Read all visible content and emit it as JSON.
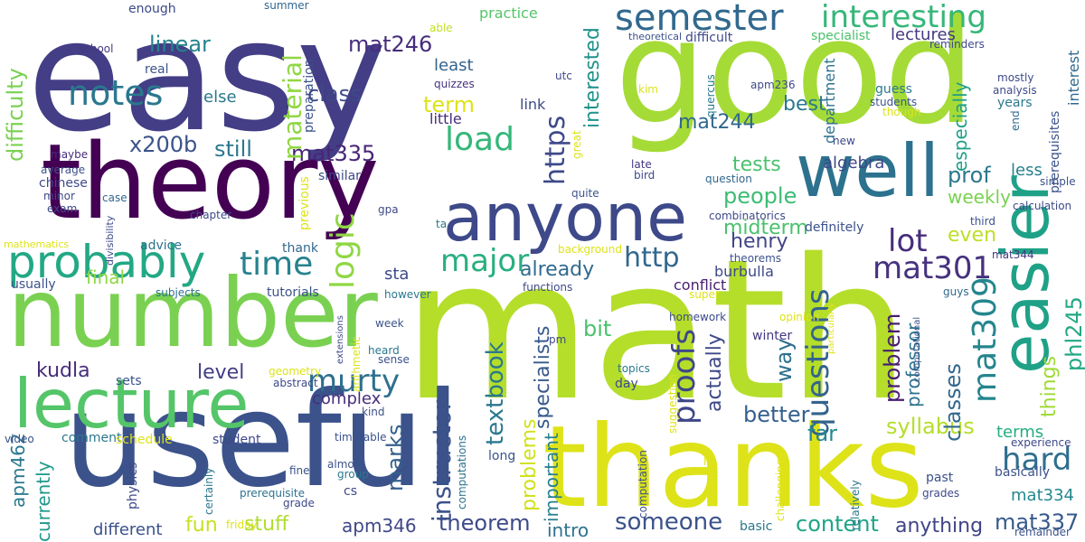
{
  "words": [
    {
      "text": "math",
      "color": "#b5de2b"
    },
    {
      "text": "easy",
      "color": "#433e85"
    },
    {
      "text": "good",
      "color": "#a5db36"
    },
    {
      "text": "useful",
      "color": "#3b528b"
    },
    {
      "text": "thanks",
      "color": "#dde318"
    },
    {
      "text": "theory",
      "color": "#440154"
    },
    {
      "text": "number",
      "color": "#7ad151"
    },
    {
      "text": "lecture",
      "color": "#54c568"
    },
    {
      "text": "anyone",
      "color": "#3e4989"
    },
    {
      "text": "well",
      "color": "#2c728e"
    },
    {
      "text": "easier",
      "color": "#1fa187"
    },
    {
      "text": "probably",
      "color": "#22a884"
    },
    {
      "text": "semester",
      "color": "#31688e"
    },
    {
      "text": "interesting",
      "color": "#35b779"
    },
    {
      "text": "notes",
      "color": "#2a788e"
    },
    {
      "text": "load",
      "color": "#35b779"
    },
    {
      "text": "time",
      "color": "#26828e"
    },
    {
      "text": "mat301",
      "color": "#46327e"
    },
    {
      "text": "murty",
      "color": "#2d708e"
    },
    {
      "text": "logic",
      "color": "#8fd744"
    },
    {
      "text": "major",
      "color": "#29af7f"
    },
    {
      "text": "https",
      "color": "#3e4989"
    },
    {
      "text": "http",
      "color": "#31688e"
    },
    {
      "text": "lot",
      "color": "#472d7b"
    },
    {
      "text": "questions",
      "color": "#33638d"
    },
    {
      "text": "proofs",
      "color": "#3f4788"
    },
    {
      "text": "mat309",
      "color": "#25858e"
    },
    {
      "text": "hard",
      "color": "#2e6e8e"
    },
    {
      "text": "someone",
      "color": "#3b528b"
    },
    {
      "text": "theorem",
      "color": "#3e4a89"
    },
    {
      "text": "marks",
      "color": "#34608d"
    },
    {
      "text": "textbook",
      "color": "#2a788e"
    },
    {
      "text": "instructor",
      "color": "#3b528b"
    },
    {
      "text": "syllabus",
      "color": "#b5de2b"
    },
    {
      "text": "level",
      "color": "#433e85"
    },
    {
      "text": "kudla",
      "color": "#472d7b"
    },
    {
      "text": "fun",
      "color": "#c8e020"
    },
    {
      "text": "stuff",
      "color": "#b0dd2f"
    },
    {
      "text": "content",
      "color": "#20a486"
    },
    {
      "text": "mat337",
      "color": "#375a8c"
    },
    {
      "text": "anything",
      "color": "#414487"
    },
    {
      "text": "phl245",
      "color": "#22a884"
    },
    {
      "text": "things",
      "color": "#a0da39"
    },
    {
      "text": "classes",
      "color": "#31688e"
    },
    {
      "text": "problem",
      "color": "#481f70"
    },
    {
      "text": "professor",
      "color": "#2c728e"
    },
    {
      "text": "midterm",
      "color": "#4ac16d"
    },
    {
      "text": "people",
      "color": "#3dbc74"
    },
    {
      "text": "tests",
      "color": "#4ac16d"
    },
    {
      "text": "x200b",
      "color": "#3b528b"
    },
    {
      "text": "mat335",
      "color": "#482677"
    },
    {
      "text": "still",
      "color": "#2a788e"
    },
    {
      "text": "material",
      "color": "#90d743"
    },
    {
      "text": "class",
      "color": "#3e4989"
    },
    {
      "text": "mat246",
      "color": "#472d7b"
    },
    {
      "text": "linear",
      "color": "#25848e"
    },
    {
      "text": "difficulty",
      "color": "#7ad151"
    },
    {
      "text": "interested",
      "color": "#21918c"
    },
    {
      "text": "term",
      "color": "#dde318"
    },
    {
      "text": "mat244",
      "color": "#31688e"
    },
    {
      "text": "best",
      "color": "#2a788e"
    },
    {
      "text": "algebra",
      "color": "#3f4788"
    },
    {
      "text": "prof",
      "color": "#2a788e"
    },
    {
      "text": "even",
      "color": "#bddf26"
    },
    {
      "text": "weekly",
      "color": "#7ad151"
    },
    {
      "text": "already",
      "color": "#306a8e"
    },
    {
      "text": "final",
      "color": "#90d743"
    },
    {
      "text": "bit",
      "color": "#4ac16d"
    },
    {
      "text": "way",
      "color": "#2d708e"
    },
    {
      "text": "better",
      "color": "#34608d"
    },
    {
      "text": "far",
      "color": "#24878e"
    },
    {
      "text": "actually",
      "color": "#3e4989"
    },
    {
      "text": "henry",
      "color": "#414487"
    },
    {
      "text": "complex",
      "color": "#472d7b"
    },
    {
      "text": "problems",
      "color": "#d0e11c"
    },
    {
      "text": "specialists",
      "color": "#375a8c"
    },
    {
      "text": "important",
      "color": "#277f8e"
    },
    {
      "text": "intro",
      "color": "#2c728e"
    },
    {
      "text": "different",
      "color": "#3b528b"
    },
    {
      "text": "apm346",
      "color": "#3f4788"
    },
    {
      "text": "apm462",
      "color": "#2a788e"
    },
    {
      "text": "currently",
      "color": "#1f998a"
    },
    {
      "text": "mat334",
      "color": "#23888e"
    },
    {
      "text": "terms",
      "color": "#26ad81"
    },
    {
      "text": "lectures",
      "color": "#453781"
    },
    {
      "text": "especially",
      "color": "#1fa088"
    },
    {
      "text": "department",
      "color": "#2c728e"
    },
    {
      "text": "less",
      "color": "#277f8e"
    },
    {
      "text": "definitely",
      "color": "#3b528b"
    },
    {
      "text": "conflict",
      "color": "#481f70"
    },
    {
      "text": "burbulla",
      "color": "#3e4989"
    },
    {
      "text": "link",
      "color": "#3e4989"
    },
    {
      "text": "least",
      "color": "#33638d"
    },
    {
      "text": "little",
      "color": "#472d7b"
    },
    {
      "text": "else",
      "color": "#2a788e"
    },
    {
      "text": "real",
      "color": "#3b528b"
    },
    {
      "text": "school",
      "color": "#453781"
    },
    {
      "text": "enough",
      "color": "#3e4989"
    },
    {
      "text": "summer",
      "color": "#31688e"
    },
    {
      "text": "practice",
      "color": "#54c568"
    },
    {
      "text": "able",
      "color": "#c2df23"
    },
    {
      "text": "theoretical",
      "color": "#3b528b"
    },
    {
      "text": "difficult",
      "color": "#3e4989"
    },
    {
      "text": "specialist",
      "color": "#4ac16d"
    },
    {
      "text": "reminders",
      "color": "#3e4989"
    },
    {
      "text": "interest",
      "color": "#31688e"
    },
    {
      "text": "prerequisites",
      "color": "#3b528b"
    },
    {
      "text": "guess",
      "color": "#2a788e"
    },
    {
      "text": "mostly",
      "color": "#3e4989"
    },
    {
      "text": "analysis",
      "color": "#3e4989"
    },
    {
      "text": "years",
      "color": "#2a788e"
    },
    {
      "text": "end",
      "color": "#31688e"
    },
    {
      "text": "students",
      "color": "#3b528b"
    },
    {
      "text": "though",
      "color": "#dde318"
    },
    {
      "text": "apm236",
      "color": "#3e4989"
    },
    {
      "text": "quercus",
      "color": "#2a788e"
    },
    {
      "text": "kim",
      "color": "#dde318"
    },
    {
      "text": "utc",
      "color": "#3e4989"
    },
    {
      "text": "preparation",
      "color": "#3b528b"
    },
    {
      "text": "quizzes",
      "color": "#46327e"
    },
    {
      "text": "chinese",
      "color": "#3e4989"
    },
    {
      "text": "average",
      "color": "#3b528b"
    },
    {
      "text": "maybe",
      "color": "#472d7b"
    },
    {
      "text": "minor",
      "color": "#3e4989"
    },
    {
      "text": "exam",
      "color": "#3e4989"
    },
    {
      "text": "case",
      "color": "#31688e"
    },
    {
      "text": "chapter",
      "color": "#3e4989"
    },
    {
      "text": "advice",
      "color": "#2c728e"
    },
    {
      "text": "mathematics",
      "color": "#dde318"
    },
    {
      "text": "usually",
      "color": "#3b528b"
    },
    {
      "text": "divisibility",
      "color": "#3e4989"
    },
    {
      "text": "previous",
      "color": "#dde318"
    },
    {
      "text": "similar",
      "color": "#3e4989"
    },
    {
      "text": "gpa",
      "color": "#3e4989"
    },
    {
      "text": "ta",
      "color": "#2a788e"
    },
    {
      "text": "sta",
      "color": "#3e4989"
    },
    {
      "text": "thank",
      "color": "#31688e"
    },
    {
      "text": "tutorials",
      "color": "#3b528b"
    },
    {
      "text": "subjects",
      "color": "#2c728e"
    },
    {
      "text": "however",
      "color": "#2a788e"
    },
    {
      "text": "functions",
      "color": "#3e4989"
    },
    {
      "text": "background",
      "color": "#dde318"
    },
    {
      "text": "quite",
      "color": "#3b528b"
    },
    {
      "text": "great",
      "color": "#dde318"
    },
    {
      "text": "late",
      "color": "#453781"
    },
    {
      "text": "bird",
      "color": "#3e4989"
    },
    {
      "text": "question",
      "color": "#31688e"
    },
    {
      "text": "combinatorics",
      "color": "#3e4989"
    },
    {
      "text": "theorems",
      "color": "#3b528b"
    },
    {
      "text": "super",
      "color": "#dde318"
    },
    {
      "text": "new",
      "color": "#3e4989"
    },
    {
      "text": "third",
      "color": "#3b528b"
    },
    {
      "text": "calculation",
      "color": "#3e4989"
    },
    {
      "text": "simple",
      "color": "#3b528b"
    },
    {
      "text": "mat344",
      "color": "#453781"
    },
    {
      "text": "guys",
      "color": "#31688e"
    },
    {
      "text": "particularly",
      "color": "#dde318"
    },
    {
      "text": "opinion",
      "color": "#dde318"
    },
    {
      "text": "homework",
      "color": "#3e4989"
    },
    {
      "text": "computational",
      "color": "#3b528b"
    },
    {
      "text": "winter",
      "color": "#453781"
    },
    {
      "text": "week",
      "color": "#3b528b"
    },
    {
      "text": "heard",
      "color": "#2a788e"
    },
    {
      "text": "sense",
      "color": "#3b528b"
    },
    {
      "text": "pm",
      "color": "#3e4989"
    },
    {
      "text": "arithmetic",
      "color": "#dde318"
    },
    {
      "text": "extensions",
      "color": "#3e4989"
    },
    {
      "text": "topics",
      "color": "#2a788e"
    },
    {
      "text": "day",
      "color": "#3e4989"
    },
    {
      "text": "suggestion",
      "color": "#dde318"
    },
    {
      "text": "lol",
      "color": "#dde318"
    },
    {
      "text": "geometry",
      "color": "#dde318"
    },
    {
      "text": "sets",
      "color": "#3b528b"
    },
    {
      "text": "abstract",
      "color": "#3e4989"
    },
    {
      "text": "kind",
      "color": "#3b528b"
    },
    {
      "text": "comment",
      "color": "#2a788e"
    },
    {
      "text": "schedule",
      "color": "#dde318"
    },
    {
      "text": "timetable",
      "color": "#3b528b"
    },
    {
      "text": "student",
      "color": "#3e4989"
    },
    {
      "text": "video",
      "color": "#3b528b"
    },
    {
      "text": "physics",
      "color": "#3e4989"
    },
    {
      "text": "certainly",
      "color": "#2a788e"
    },
    {
      "text": "almost",
      "color": "#3b528b"
    },
    {
      "text": "group",
      "color": "#2a788e"
    },
    {
      "text": "fine",
      "color": "#3b528b"
    },
    {
      "text": "computations",
      "color": "#2c728e"
    },
    {
      "text": "prerequisite",
      "color": "#2c728e"
    },
    {
      "text": "grade",
      "color": "#3e4989"
    },
    {
      "text": "cs",
      "color": "#3e4989"
    },
    {
      "text": "friday",
      "color": "#dde318"
    },
    {
      "text": "long",
      "color": "#3b528b"
    },
    {
      "text": "computation",
      "color": "#3b528b"
    },
    {
      "text": "challenging",
      "color": "#dde318"
    },
    {
      "text": "relatively",
      "color": "#2a788e"
    },
    {
      "text": "basic",
      "color": "#2a788e"
    },
    {
      "text": "past",
      "color": "#3b528b"
    },
    {
      "text": "grades",
      "color": "#3e4989"
    },
    {
      "text": "basically",
      "color": "#3b528b"
    },
    {
      "text": "experience",
      "color": "#3e4989"
    },
    {
      "text": "remainder",
      "color": "#3b528b"
    }
  ]
}
